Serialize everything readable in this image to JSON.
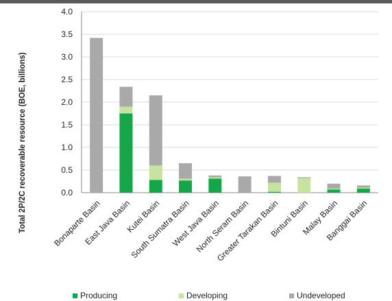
{
  "chart_data": {
    "type": "bar",
    "stacked": true,
    "ylabel": "Total 2P/2C recoverable resource (BOE, billions)",
    "xlabel": "",
    "ylim": [
      0,
      4.0
    ],
    "yticks": [
      "0.0",
      "0.5",
      "1.0",
      "1.5",
      "2.0",
      "2.5",
      "3.0",
      "3.5",
      "4.0"
    ],
    "grid": true,
    "legend_position": "bottom",
    "categories": [
      "Bonaparte Basin",
      "East Java Basin",
      "Kutei Basin",
      "South Sumatra Basin",
      "West Java Basin",
      "North Seram Basin",
      "Greater Tarakan Basin",
      "Bintuni Basin",
      "Malay Basin",
      "Banggai Basin"
    ],
    "series": [
      {
        "name": "Producing",
        "color": "#16a64a",
        "values": [
          0.0,
          1.75,
          0.28,
          0.27,
          0.31,
          0.0,
          0.02,
          0.0,
          0.07,
          0.09
        ]
      },
      {
        "name": "Developing",
        "color": "#c7e3a0",
        "values": [
          0.0,
          0.15,
          0.32,
          0.04,
          0.03,
          0.0,
          0.2,
          0.32,
          0.02,
          0.02
        ]
      },
      {
        "name": "Undeveloped",
        "color": "#a9a9a9",
        "values": [
          3.42,
          0.44,
          1.55,
          0.34,
          0.04,
          0.36,
          0.15,
          0.02,
          0.11,
          0.05
        ]
      }
    ]
  }
}
